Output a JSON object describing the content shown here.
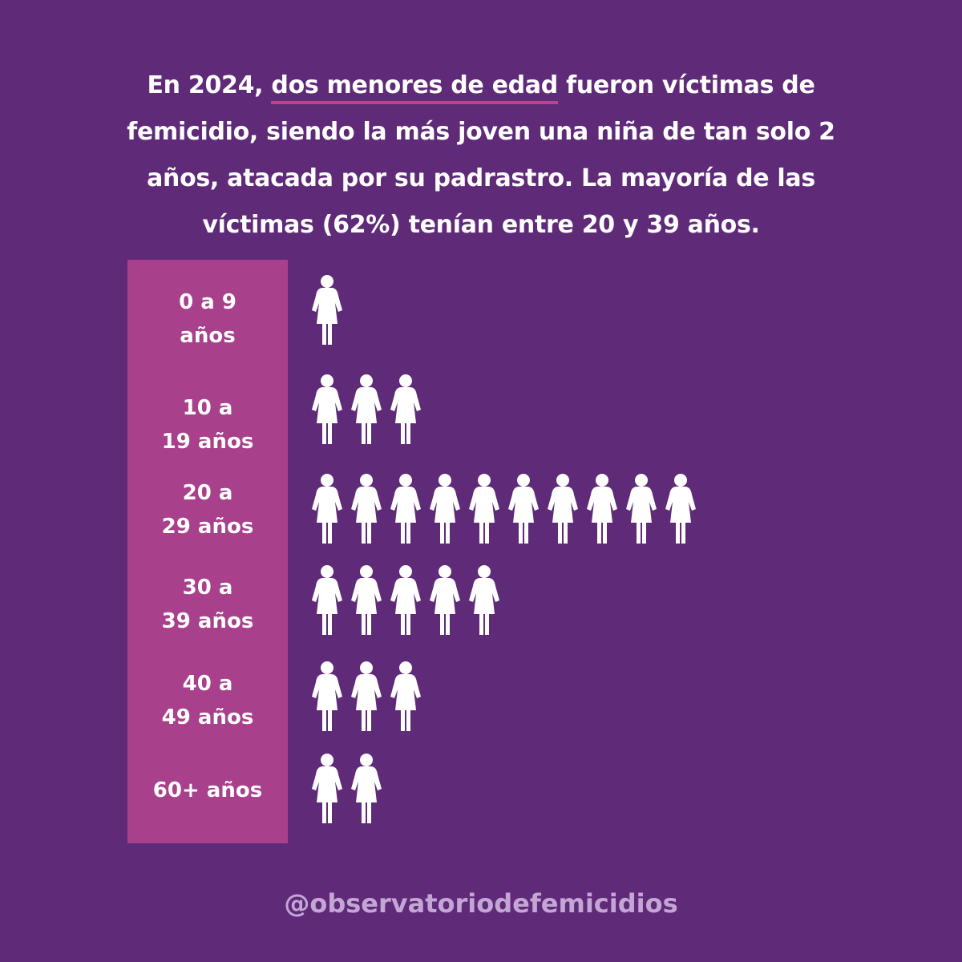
{
  "headline": {
    "part1": "En 2024, ",
    "highlight": "dos menores de edad",
    "part2": " fueron víctimas de femicidio, siendo la más joven una niña de tan solo 2 años, atacada por su padrastro. La mayoría de las víctimas (62%) tenían entre 20 y 39 años."
  },
  "colors": {
    "background": "#5f2a78",
    "label_panel": "#a8408c",
    "highlight_underline": "#b8458e",
    "icon": "#ffffff",
    "handle": "#c4a6d6"
  },
  "chart_data": {
    "type": "bar",
    "unit_icon": "woman-icon",
    "categories": [
      "0 a 9 años",
      "10 a 19 años",
      "20 a 29 años",
      "30 a 39 años",
      "40 a 49 años",
      "60+  años"
    ],
    "values": [
      1,
      3,
      10,
      5,
      3,
      2
    ]
  },
  "labels": [
    {
      "line1": "0 a 9",
      "line2": "años"
    },
    {
      "line1": "10 a",
      "line2": "19 años"
    },
    {
      "line1": "20 a",
      "line2": "29 años"
    },
    {
      "line1": "30 a",
      "line2": "39 años"
    },
    {
      "line1": "40 a",
      "line2": "49 años"
    },
    {
      "line1": "60+  años",
      "line2": ""
    }
  ],
  "footer": {
    "handle": "@observatoriodefemicidios"
  }
}
